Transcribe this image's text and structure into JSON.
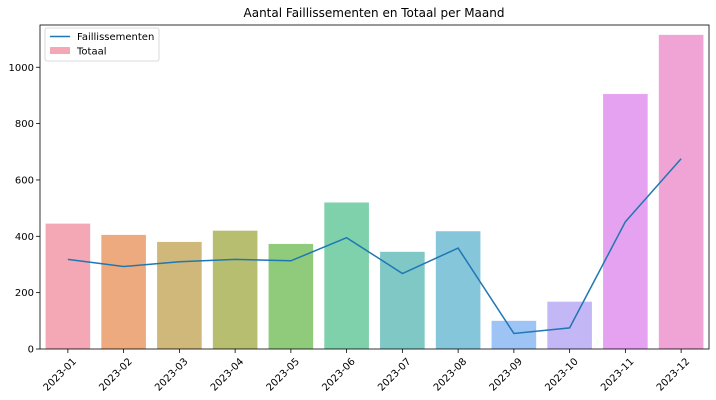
{
  "chart_data": {
    "type": "bar",
    "title": "Aantal Faillissementen en Totaal per Maand",
    "xlabel": "",
    "ylabel": "",
    "categories": [
      "2023-01",
      "2023-02",
      "2023-03",
      "2023-04",
      "2023-05",
      "2023-06",
      "2023-07",
      "2023-08",
      "2023-09",
      "2023-10",
      "2023-11",
      "2023-12"
    ],
    "series": [
      {
        "name": "Totaal",
        "type": "bar",
        "values": [
          445,
          405,
          380,
          420,
          373,
          520,
          345,
          418,
          100,
          168,
          905,
          1115
        ],
        "colors": [
          "#f4a7b5",
          "#eeaa7f",
          "#cfb87a",
          "#b8be6f",
          "#8fcb7a",
          "#7fd1ab",
          "#7fc8c5",
          "#86c6da",
          "#9dc4f5",
          "#c3b8f5",
          "#e5a2f0",
          "#f0a4d5"
        ]
      },
      {
        "name": "Faillissementen",
        "type": "line",
        "values": [
          318,
          293,
          310,
          318,
          313,
          395,
          268,
          358,
          55,
          75,
          452,
          675
        ],
        "color": "#1f77b4"
      }
    ],
    "ylim": [
      0,
      1150
    ],
    "yticks": [
      0,
      200,
      400,
      600,
      800,
      1000
    ],
    "grid": false,
    "legend_position": "top-left"
  }
}
